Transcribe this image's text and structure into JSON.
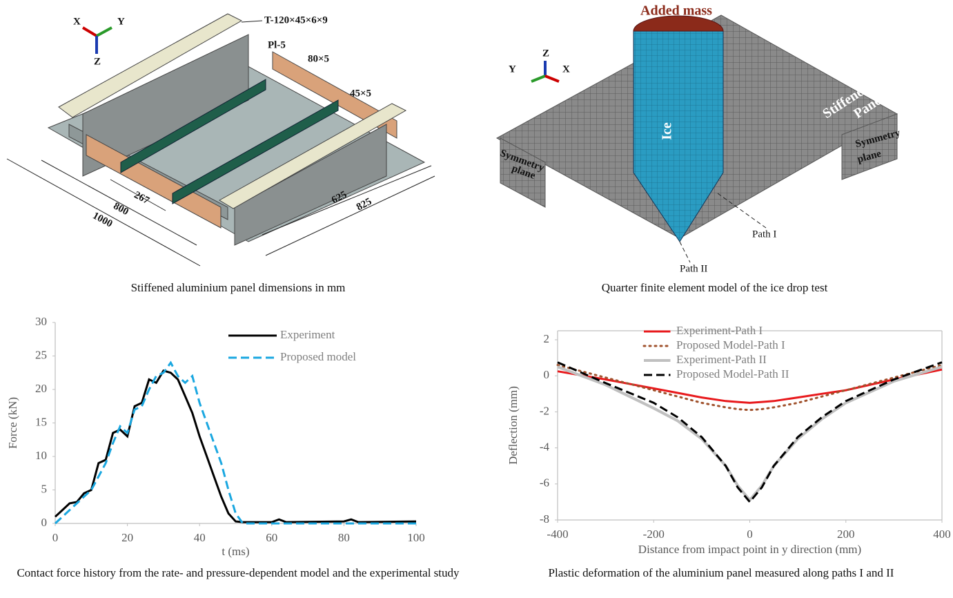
{
  "panel_figure": {
    "axes": [
      "X",
      "Y",
      "Z"
    ],
    "labels": [
      "T-120×45×6×9",
      "Pl-5",
      "80×5",
      "45×5",
      "267",
      "800",
      "1000",
      "625",
      "825"
    ],
    "caption": "Stiffened aluminium panel dimensions in mm"
  },
  "model_figure": {
    "axes": [
      "Z",
      "Y",
      "X"
    ],
    "labels": [
      "Added mass",
      "Ice",
      "Stiffened",
      "Panel",
      "Symmetry",
      "plane",
      "Symmetry",
      "plane",
      "Path I",
      "Path II"
    ],
    "caption": "Quarter finite element model of the ice drop test"
  },
  "chart_data": [
    {
      "type": "line",
      "caption": "Contact force history from the rate- and pressure-dependent model and the experimental study",
      "xlabel": "t (ms)",
      "ylabel": "Force (kN)",
      "xlim": [
        0,
        100
      ],
      "xticks": [
        0,
        20,
        40,
        60,
        80,
        100
      ],
      "ylim": [
        0,
        30
      ],
      "yticks": [
        0,
        5,
        10,
        15,
        20,
        25,
        30
      ],
      "legend": "upper-right",
      "frame": false,
      "series": [
        {
          "name": "Experiment",
          "color": "#000000",
          "line_style": "solid",
          "x": [
            0,
            2,
            4,
            6,
            8,
            10,
            12,
            14,
            16,
            18,
            20,
            22,
            24,
            26,
            28,
            30,
            32,
            34,
            36,
            38,
            40,
            42,
            44,
            46,
            48,
            50,
            52,
            60,
            62,
            64,
            80,
            82,
            84,
            100
          ],
          "values": [
            1,
            2,
            3,
            3.2,
            4.5,
            5,
            9,
            9.5,
            13.5,
            14,
            13,
            17.5,
            18,
            21.5,
            21,
            22.8,
            22.5,
            21.5,
            19,
            16.5,
            13,
            10,
            7,
            4,
            1.5,
            0.3,
            0.2,
            0.2,
            0.6,
            0.2,
            0.3,
            0.6,
            0.2,
            0.3
          ]
        },
        {
          "name": "Proposed model",
          "color": "#1aa7e0",
          "line_style": "dashed",
          "x": [
            0,
            2,
            4,
            6,
            8,
            10,
            12,
            14,
            16,
            18,
            20,
            22,
            24,
            26,
            28,
            30,
            32,
            34,
            36,
            38,
            40,
            42,
            44,
            46,
            48,
            50,
            52,
            100
          ],
          "values": [
            0,
            1,
            2,
            3,
            4,
            5,
            7,
            9,
            12,
            14.5,
            13.5,
            17,
            17.5,
            20,
            22,
            22.5,
            24,
            22,
            21,
            22,
            18,
            15,
            12,
            9,
            5,
            1.5,
            0,
            0
          ]
        }
      ]
    },
    {
      "type": "line",
      "caption": "Plastic deformation of the aluminium panel measured along paths I and II",
      "xlabel": "Distance from impact point in y direction (mm)",
      "ylabel": "Deflection (mm)",
      "xlim": [
        -400,
        400
      ],
      "xticks": [
        -400,
        -200,
        0,
        200,
        400
      ],
      "ylim": [
        -8,
        2.5
      ],
      "yticks": [
        -8,
        -6,
        -4,
        -2,
        0,
        2
      ],
      "legend": "upper-left",
      "frame": true,
      "series": [
        {
          "name": "Experiment-Path I",
          "color": "#e8191c",
          "line_style": "solid",
          "x": [
            -400,
            -300,
            -200,
            -150,
            -100,
            -50,
            -25,
            0,
            25,
            50,
            100,
            150,
            200,
            300,
            400
          ],
          "values": [
            0.25,
            -0.2,
            -0.7,
            -0.95,
            -1.2,
            -1.4,
            -1.45,
            -1.5,
            -1.45,
            -1.4,
            -1.2,
            -1.0,
            -0.8,
            -0.2,
            0.35
          ]
        },
        {
          "name": "Proposed Model-Path I",
          "color": "#a0522d",
          "line_style": "dotted",
          "x": [
            -400,
            -300,
            -200,
            -150,
            -100,
            -50,
            -25,
            0,
            25,
            50,
            100,
            150,
            200,
            300,
            400
          ],
          "values": [
            0.6,
            -0.1,
            -0.8,
            -1.15,
            -1.5,
            -1.75,
            -1.85,
            -1.9,
            -1.85,
            -1.75,
            -1.5,
            -1.15,
            -0.8,
            -0.1,
            0.6
          ]
        },
        {
          "name": "Experiment-Path II",
          "color": "#c0c0c0",
          "line_style": "solid",
          "x": [
            -400,
            -300,
            -200,
            -150,
            -100,
            -50,
            -25,
            0,
            25,
            50,
            100,
            150,
            200,
            300,
            400
          ],
          "values": [
            0.5,
            -0.5,
            -1.8,
            -2.5,
            -3.5,
            -5.0,
            -6.1,
            -6.9,
            -6.1,
            -5.0,
            -3.5,
            -2.4,
            -1.5,
            -0.3,
            0.5
          ]
        },
        {
          "name": "Proposed Model-Path II",
          "color": "#000000",
          "line_style": "dashed",
          "x": [
            -400,
            -300,
            -200,
            -150,
            -100,
            -50,
            -25,
            0,
            25,
            50,
            100,
            150,
            200,
            300,
            400
          ],
          "values": [
            0.75,
            -0.4,
            -1.5,
            -2.3,
            -3.4,
            -5.0,
            -6.2,
            -7.0,
            -6.2,
            -5.0,
            -3.4,
            -2.3,
            -1.4,
            -0.2,
            0.75
          ]
        }
      ]
    }
  ]
}
